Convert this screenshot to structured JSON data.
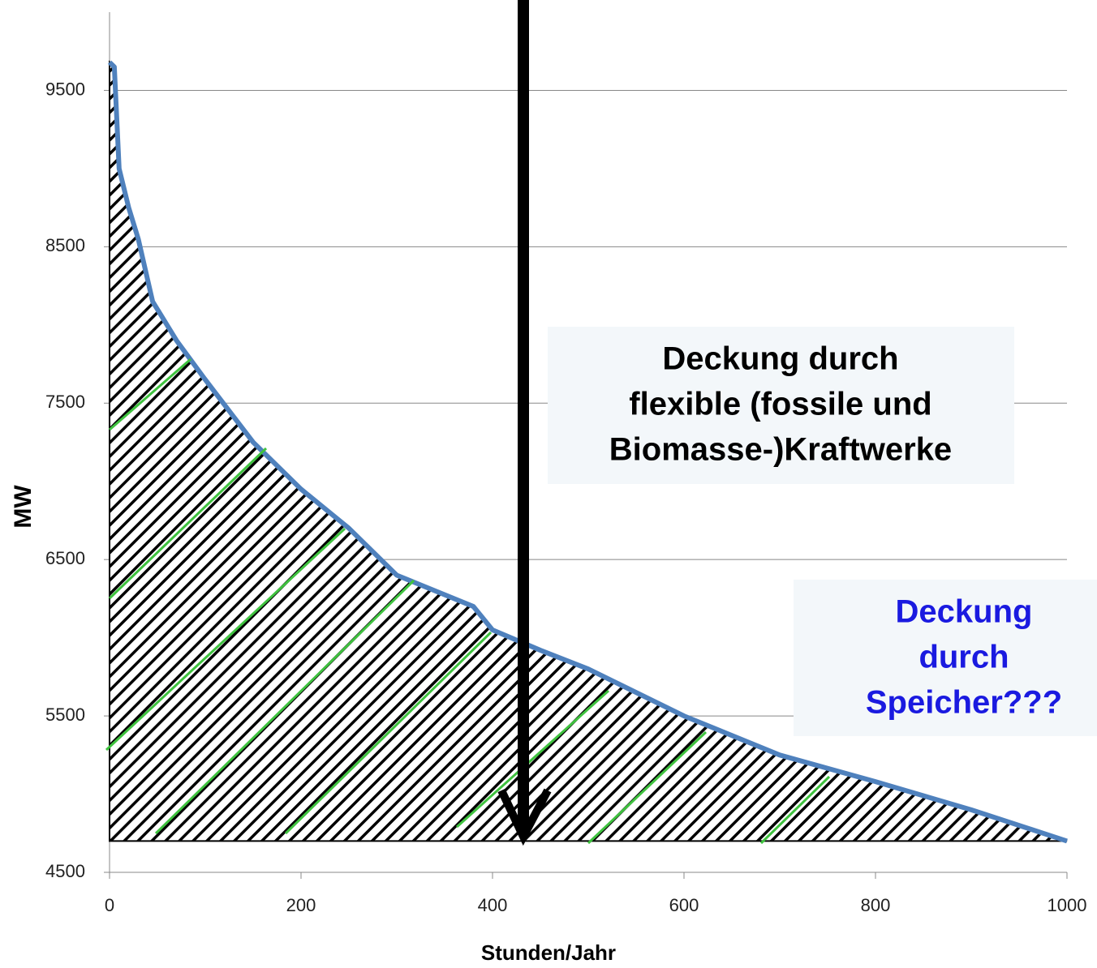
{
  "chart_data": {
    "type": "area-line",
    "x": [
      0,
      5,
      10,
      20,
      30,
      45,
      70,
      100,
      150,
      200,
      250,
      300,
      320,
      380,
      400,
      450,
      500,
      600,
      700,
      800,
      900,
      1000
    ],
    "values": [
      9680,
      9650,
      9000,
      8750,
      8550,
      8150,
      7900,
      7650,
      7250,
      6950,
      6700,
      6400,
      6350,
      6200,
      6050,
      5920,
      5800,
      5500,
      5250,
      5080,
      4900,
      4700
    ],
    "area_base": 4700,
    "color": "#4f81bd",
    "xlim": [
      0,
      1000
    ],
    "xticks": [
      0,
      200,
      400,
      600,
      800,
      1000
    ],
    "ylim": [
      4500,
      10000
    ],
    "yticks": [
      4500,
      5500,
      6500,
      7500,
      8500,
      9500
    ],
    "grid": true,
    "x_label": "Stunden/Jahr",
    "y_label": "MW",
    "annotations": [
      {
        "lines": [
          "Deckung durch",
          "flexible (fossile und",
          "Biomasse-)Kraftwerke"
        ],
        "color": "#000000"
      },
      {
        "lines": [
          "Deckung",
          "durch",
          "Speicher???"
        ],
        "color": "#1a1ae0"
      }
    ]
  }
}
